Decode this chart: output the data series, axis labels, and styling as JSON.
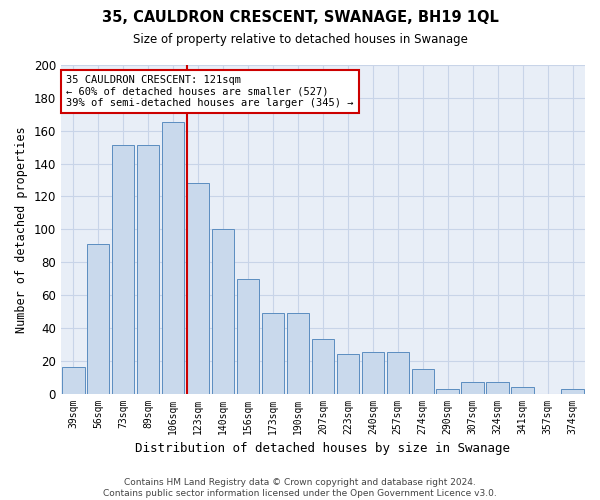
{
  "title": "35, CAULDRON CRESCENT, SWANAGE, BH19 1QL",
  "subtitle": "Size of property relative to detached houses in Swanage",
  "xlabel": "Distribution of detached houses by size in Swanage",
  "ylabel": "Number of detached properties",
  "bar_labels": [
    "39sqm",
    "56sqm",
    "73sqm",
    "89sqm",
    "106sqm",
    "123sqm",
    "140sqm",
    "156sqm",
    "173sqm",
    "190sqm",
    "207sqm",
    "223sqm",
    "240sqm",
    "257sqm",
    "274sqm",
    "290sqm",
    "307sqm",
    "324sqm",
    "341sqm",
    "357sqm",
    "374sqm"
  ],
  "bar_values": [
    16,
    91,
    151,
    151,
    165,
    128,
    100,
    70,
    49,
    49,
    33,
    24,
    25,
    25,
    15,
    3,
    7,
    7,
    4,
    0,
    3
  ],
  "bar_color": "#c9d9ec",
  "bar_edge_color": "#5b8dc0",
  "vline_color": "#cc0000",
  "annotation_text": "35 CAULDRON CRESCENT: 121sqm\n← 60% of detached houses are smaller (527)\n39% of semi-detached houses are larger (345) →",
  "annotation_box_color": "#ffffff",
  "annotation_box_edge": "#cc0000",
  "ylim": [
    0,
    200
  ],
  "yticks": [
    0,
    20,
    40,
    60,
    80,
    100,
    120,
    140,
    160,
    180,
    200
  ],
  "grid_color": "#c8d4e8",
  "bg_color": "#e8eef7",
  "fig_bg_color": "#ffffff",
  "footer": "Contains HM Land Registry data © Crown copyright and database right 2024.\nContains public sector information licensed under the Open Government Licence v3.0."
}
